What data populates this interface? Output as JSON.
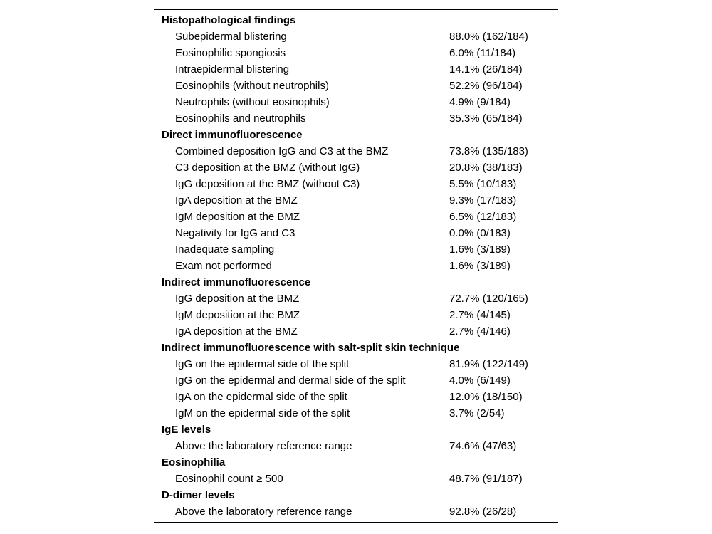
{
  "table": {
    "sections": [
      {
        "title": "Histopathological findings",
        "rows": [
          {
            "label": "Subepidermal blistering",
            "value": "88.0% (162/184)"
          },
          {
            "label": "Eosinophilic spongiosis",
            "value": "6.0% (11/184)"
          },
          {
            "label": "Intraepidermal blistering",
            "value": "14.1% (26/184)"
          },
          {
            "label": "Eosinophils (without neutrophils)",
            "value": "52.2% (96/184)"
          },
          {
            "label": "Neutrophils (without eosinophils)",
            "value": "4.9% (9/184)"
          },
          {
            "label": "Eosinophils and neutrophils",
            "value": "35.3% (65/184)"
          }
        ]
      },
      {
        "title": "Direct immunofluorescence",
        "rows": [
          {
            "label": "Combined deposition IgG and C3 at the BMZ",
            "value": "73.8% (135/183)"
          },
          {
            "label": "C3 deposition at the BMZ (without IgG)",
            "value": "20.8% (38/183)"
          },
          {
            "label": "IgG deposition at the BMZ (without C3)",
            "value": "5.5% (10/183)"
          },
          {
            "label": "IgA deposition at the BMZ",
            "value": "9.3% (17/183)"
          },
          {
            "label": "IgM deposition at the BMZ",
            "value": "6.5% (12/183)"
          },
          {
            "label": "Negativity for IgG and C3",
            "value": "0.0% (0/183)"
          },
          {
            "label": "Inadequate sampling",
            "value": "1.6% (3/189)"
          },
          {
            "label": "Exam not performed",
            "value": "1.6% (3/189)"
          }
        ]
      },
      {
        "title": "Indirect immunofluorescence",
        "rows": [
          {
            "label": "IgG deposition at the BMZ",
            "value": "72.7% (120/165)"
          },
          {
            "label": "IgM deposition at the BMZ",
            "value": "2.7% (4/145)"
          },
          {
            "label": "IgA deposition at the BMZ",
            "value": "2.7% (4/146)"
          }
        ]
      },
      {
        "title": "Indirect immunofluorescence with salt-split skin technique",
        "rows": [
          {
            "label": "IgG on the epidermal side of the split",
            "value": "81.9% (122/149)"
          },
          {
            "label": "IgG on the epidermal and dermal side of the split",
            "value": "4.0% (6/149)"
          },
          {
            "label": "IgA on the epidermal side of the split",
            "value": "12.0% (18/150)"
          },
          {
            "label": "IgM on the epidermal side of the split",
            "value": "3.7% (2/54)"
          }
        ]
      },
      {
        "title": "IgE levels",
        "rows": [
          {
            "label": "Above the laboratory reference range",
            "value": "74.6% (47/63)"
          }
        ]
      },
      {
        "title": "Eosinophilia",
        "rows": [
          {
            "label": "Eosinophil count ≥ 500",
            "value": "48.7% (91/187)"
          }
        ]
      },
      {
        "title": "D-dimer levels",
        "rows": [
          {
            "label": "Above the laboratory reference range",
            "value": "92.8% (26/28)"
          }
        ]
      }
    ]
  }
}
